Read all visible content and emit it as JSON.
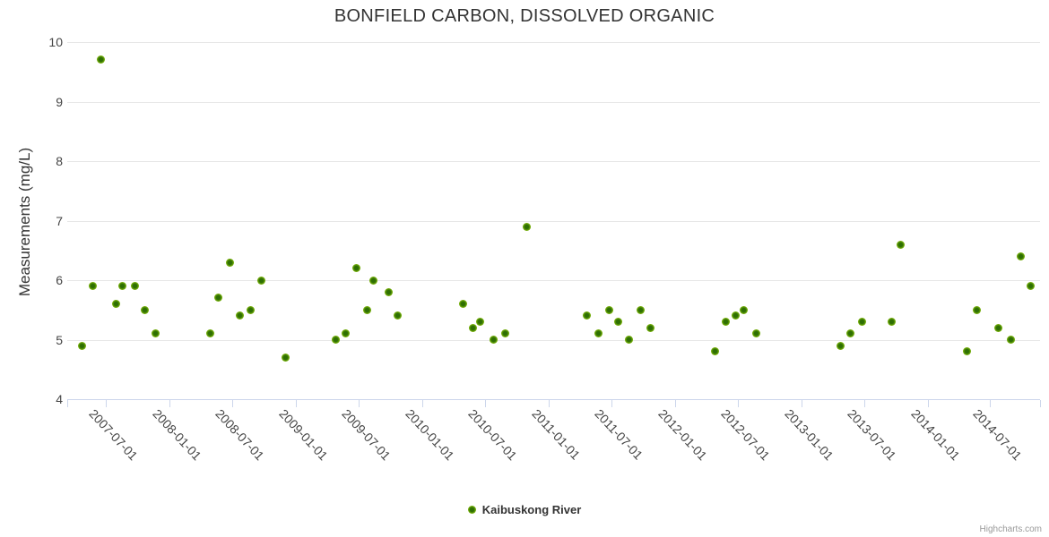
{
  "title": "BONFIELD CARBON, DISSOLVED ORGANIC",
  "credits_label": "Highcharts.com",
  "legend": {
    "series_label": "Kaibuskong River"
  },
  "colors": {
    "marker_outer": "#95c61d",
    "marker_mid": "#7cb40c",
    "marker_inner": "#2e6f03",
    "axis_line": "#ccd6eb",
    "grid_line": "#e7e7e7",
    "title_color": "#333333",
    "label_color": "#454545",
    "credits_color": "#999999"
  },
  "chart_data": {
    "type": "scatter",
    "title": "BONFIELD CARBON, DISSOLVED ORGANIC",
    "xlabel": "",
    "ylabel": "Measurements (mg/L)",
    "ylim": [
      4,
      10
    ],
    "yticks": [
      4,
      5,
      6,
      7,
      8,
      9,
      10
    ],
    "xlim": [
      "2007-03-12",
      "2014-11-22"
    ],
    "xticks": [
      "2007-07-01",
      "2008-01-01",
      "2008-07-01",
      "2009-01-01",
      "2009-07-01",
      "2010-01-01",
      "2010-07-01",
      "2011-01-01",
      "2011-07-01",
      "2012-01-01",
      "2012-07-01",
      "2013-01-01",
      "2013-07-01",
      "2014-01-01",
      "2014-07-01"
    ],
    "grid": "horizontal",
    "legend_position": "bottom-center",
    "series": [
      {
        "name": "Kaibuskong River",
        "color": "#7cb40c",
        "points": [
          {
            "date": "2007-04-25",
            "value": 4.9
          },
          {
            "date": "2007-05-26",
            "value": 5.9
          },
          {
            "date": "2007-06-17",
            "value": 9.7
          },
          {
            "date": "2007-07-30",
            "value": 5.6
          },
          {
            "date": "2007-08-18",
            "value": 5.9
          },
          {
            "date": "2007-09-24",
            "value": 5.9
          },
          {
            "date": "2007-10-23",
            "value": 5.5
          },
          {
            "date": "2007-11-23",
            "value": 5.1
          },
          {
            "date": "2008-04-29",
            "value": 5.1
          },
          {
            "date": "2008-05-21",
            "value": 5.7
          },
          {
            "date": "2008-06-24",
            "value": 6.3
          },
          {
            "date": "2008-07-24",
            "value": 5.4
          },
          {
            "date": "2008-08-24",
            "value": 5.5
          },
          {
            "date": "2008-09-23",
            "value": 6.0
          },
          {
            "date": "2008-12-03",
            "value": 4.7
          },
          {
            "date": "2009-04-26",
            "value": 5.0
          },
          {
            "date": "2009-05-24",
            "value": 5.1
          },
          {
            "date": "2009-06-26",
            "value": 6.2
          },
          {
            "date": "2009-07-26",
            "value": 5.5
          },
          {
            "date": "2009-08-14",
            "value": 6.0
          },
          {
            "date": "2009-09-25",
            "value": 5.8
          },
          {
            "date": "2009-10-23",
            "value": 5.4
          },
          {
            "date": "2010-04-28",
            "value": 5.6
          },
          {
            "date": "2010-05-29",
            "value": 5.2
          },
          {
            "date": "2010-06-17",
            "value": 5.3
          },
          {
            "date": "2010-07-26",
            "value": 5.0
          },
          {
            "date": "2010-08-29",
            "value": 5.1
          },
          {
            "date": "2010-10-30",
            "value": 6.9
          },
          {
            "date": "2011-04-23",
            "value": 5.4
          },
          {
            "date": "2011-05-26",
            "value": 5.1
          },
          {
            "date": "2011-06-25",
            "value": 5.5
          },
          {
            "date": "2011-07-21",
            "value": 5.3
          },
          {
            "date": "2011-08-22",
            "value": 5.0
          },
          {
            "date": "2011-09-24",
            "value": 5.5
          },
          {
            "date": "2011-10-24",
            "value": 5.2
          },
          {
            "date": "2012-04-27",
            "value": 4.8
          },
          {
            "date": "2012-05-27",
            "value": 5.3
          },
          {
            "date": "2012-06-25",
            "value": 5.4
          },
          {
            "date": "2012-07-19",
            "value": 5.5
          },
          {
            "date": "2012-08-24",
            "value": 5.1
          },
          {
            "date": "2013-04-25",
            "value": 4.9
          },
          {
            "date": "2013-05-24",
            "value": 5.1
          },
          {
            "date": "2013-06-25",
            "value": 5.3
          },
          {
            "date": "2013-09-19",
            "value": 5.3
          },
          {
            "date": "2013-10-15",
            "value": 6.6
          },
          {
            "date": "2014-04-26",
            "value": 4.8
          },
          {
            "date": "2014-05-23",
            "value": 5.5
          },
          {
            "date": "2014-07-24",
            "value": 5.2
          },
          {
            "date": "2014-08-30",
            "value": 5.0
          },
          {
            "date": "2014-09-26",
            "value": 6.4
          },
          {
            "date": "2014-10-25",
            "value": 5.9
          }
        ]
      }
    ]
  }
}
